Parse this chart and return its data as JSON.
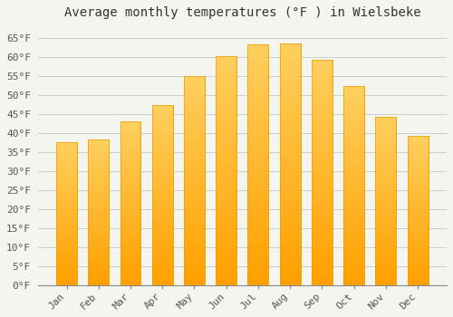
{
  "title": "Average monthly temperatures (°F ) in Wielsbeke",
  "months": [
    "Jan",
    "Feb",
    "Mar",
    "Apr",
    "May",
    "Jun",
    "Jul",
    "Aug",
    "Sep",
    "Oct",
    "Nov",
    "Dec"
  ],
  "values": [
    37.5,
    38.3,
    43.0,
    47.3,
    55.0,
    60.1,
    63.3,
    63.5,
    59.2,
    52.2,
    44.2,
    39.2
  ],
  "bar_color_top": "#FFC020",
  "bar_color_bottom": "#FFB000",
  "bar_color_edge": "#E8A000",
  "background_color": "#F5F5F0",
  "plot_bg_color": "#F5F5F0",
  "grid_color": "#CCCCCC",
  "title_fontsize": 10,
  "tick_fontsize": 8,
  "ylim": [
    0,
    68
  ],
  "yticks": [
    0,
    5,
    10,
    15,
    20,
    25,
    30,
    35,
    40,
    45,
    50,
    55,
    60,
    65
  ]
}
